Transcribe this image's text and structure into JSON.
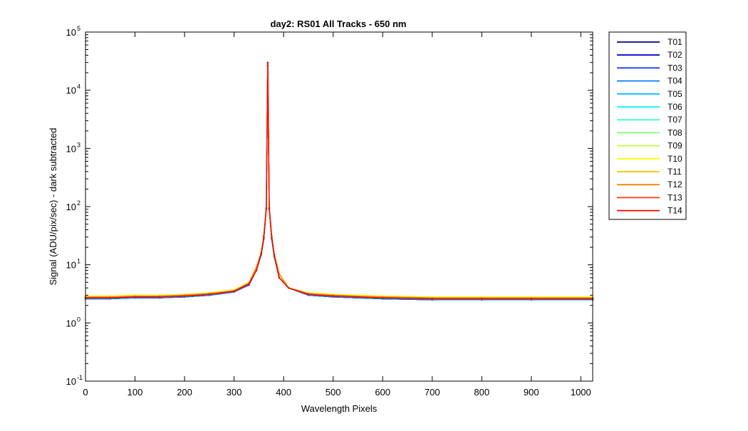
{
  "chart_data": {
    "type": "line",
    "title": "day2: RS01  All Tracks - 650 nm",
    "xlabel": "Wavelength Pixels",
    "ylabel": "Signal (ADU/pix/sec) - dark subtracted",
    "xlim": [
      0,
      1024
    ],
    "ylim": [
      0.1,
      100000
    ],
    "yscale": "log",
    "grid": false,
    "legend_position": "outside-right",
    "x_ticks": [
      "0",
      "100",
      "200",
      "300",
      "400",
      "500",
      "600",
      "700",
      "800",
      "900",
      "1000"
    ],
    "x_tick_values": [
      0,
      100,
      200,
      300,
      400,
      500,
      600,
      700,
      800,
      900,
      1000
    ],
    "y_ticks": [
      {
        "base": "10",
        "exp": "-1"
      },
      {
        "base": "10",
        "exp": "0"
      },
      {
        "base": "10",
        "exp": "1"
      },
      {
        "base": "10",
        "exp": "2"
      },
      {
        "base": "10",
        "exp": "3"
      },
      {
        "base": "10",
        "exp": "4"
      },
      {
        "base": "10",
        "exp": "5"
      }
    ],
    "y_tick_values": [
      0.1,
      1,
      10,
      100,
      1000,
      10000,
      100000
    ],
    "x": [
      0,
      50,
      100,
      150,
      200,
      250,
      300,
      330,
      345,
      355,
      360,
      365,
      368,
      371,
      376,
      381,
      391,
      410,
      450,
      500,
      600,
      700,
      800,
      900,
      1024
    ],
    "series": [
      {
        "name": "T01",
        "color": "#00008f",
        "values": [
          2.6,
          2.6,
          2.7,
          2.7,
          2.8,
          3.0,
          3.4,
          4.5,
          8,
          15,
          28,
          90,
          26000,
          90,
          28,
          14,
          6,
          4,
          3.0,
          2.8,
          2.6,
          2.5,
          2.5,
          2.5,
          2.5
        ]
      },
      {
        "name": "T02",
        "color": "#0000c8",
        "values": [
          2.6,
          2.6,
          2.7,
          2.7,
          2.8,
          3.0,
          3.4,
          4.5,
          8,
          15,
          28,
          90,
          26500,
          90,
          28,
          14,
          6,
          4,
          3.0,
          2.8,
          2.6,
          2.5,
          2.5,
          2.5,
          2.5
        ]
      },
      {
        "name": "T03",
        "color": "#0033ff",
        "values": [
          2.6,
          2.6,
          2.7,
          2.7,
          2.8,
          3.0,
          3.4,
          4.6,
          8,
          15,
          29,
          92,
          27000,
          92,
          29,
          14,
          6,
          4,
          3.0,
          2.8,
          2.6,
          2.5,
          2.5,
          2.5,
          2.5
        ]
      },
      {
        "name": "T04",
        "color": "#0080ff",
        "values": [
          2.6,
          2.6,
          2.7,
          2.7,
          2.8,
          3.0,
          3.4,
          4.6,
          8,
          15,
          29,
          92,
          27000,
          92,
          29,
          14,
          6,
          4,
          3.0,
          2.8,
          2.6,
          2.5,
          2.5,
          2.5,
          2.5
        ]
      },
      {
        "name": "T05",
        "color": "#00bfff",
        "values": [
          2.7,
          2.7,
          2.8,
          2.8,
          2.9,
          3.1,
          3.5,
          4.7,
          8,
          16,
          30,
          94,
          27500,
          94,
          30,
          15,
          6,
          4,
          3.1,
          2.9,
          2.7,
          2.6,
          2.6,
          2.6,
          2.6
        ]
      },
      {
        "name": "T06",
        "color": "#00f0ff",
        "values": [
          2.7,
          2.7,
          2.8,
          2.8,
          2.9,
          3.1,
          3.5,
          4.7,
          8,
          16,
          30,
          94,
          27500,
          94,
          30,
          15,
          6,
          4,
          3.1,
          2.9,
          2.7,
          2.6,
          2.6,
          2.6,
          2.6
        ]
      },
      {
        "name": "T07",
        "color": "#40ffbf",
        "values": [
          2.8,
          2.8,
          2.9,
          2.9,
          3.0,
          3.2,
          3.6,
          4.8,
          9,
          16,
          31,
          96,
          28000,
          96,
          31,
          15,
          7,
          4,
          3.2,
          3.0,
          2.8,
          2.7,
          2.7,
          2.7,
          2.7
        ]
      },
      {
        "name": "T08",
        "color": "#80ff80",
        "values": [
          2.8,
          2.8,
          2.9,
          2.9,
          3.0,
          3.2,
          3.6,
          4.9,
          9,
          17,
          31,
          96,
          28000,
          96,
          31,
          16,
          7,
          4,
          3.2,
          3.0,
          2.8,
          2.7,
          2.7,
          2.7,
          2.7
        ]
      },
      {
        "name": "T09",
        "color": "#bfff40",
        "values": [
          2.9,
          2.9,
          3.0,
          3.0,
          3.1,
          3.3,
          3.7,
          5.0,
          9,
          17,
          32,
          98,
          28500,
          98,
          32,
          16,
          7,
          4,
          3.3,
          3.1,
          2.9,
          2.8,
          2.8,
          2.8,
          2.8
        ]
      },
      {
        "name": "T10",
        "color": "#ffff00",
        "values": [
          2.9,
          2.9,
          3.0,
          3.0,
          3.1,
          3.3,
          3.7,
          5.0,
          9,
          17,
          32,
          98,
          28500,
          98,
          32,
          16,
          7,
          4,
          3.3,
          3.1,
          2.9,
          2.8,
          2.8,
          2.8,
          2.8
        ]
      },
      {
        "name": "T11",
        "color": "#ffbf00",
        "values": [
          2.8,
          2.8,
          2.9,
          2.9,
          3.0,
          3.2,
          3.6,
          4.9,
          9,
          16,
          31,
          96,
          29000,
          96,
          31,
          15,
          7,
          4,
          3.2,
          3.0,
          2.8,
          2.7,
          2.7,
          2.7,
          2.7
        ]
      },
      {
        "name": "T12",
        "color": "#ff8000",
        "values": [
          2.8,
          2.8,
          2.9,
          2.9,
          3.0,
          3.2,
          3.6,
          4.8,
          9,
          16,
          31,
          96,
          29000,
          96,
          31,
          15,
          7,
          4,
          3.2,
          3.0,
          2.8,
          2.7,
          2.7,
          2.7,
          2.7
        ]
      },
      {
        "name": "T13",
        "color": "#ff4000",
        "values": [
          2.7,
          2.7,
          2.8,
          2.8,
          2.9,
          3.1,
          3.5,
          4.7,
          8,
          16,
          30,
          94,
          29500,
          94,
          30,
          15,
          6,
          4,
          3.1,
          2.9,
          2.7,
          2.6,
          2.6,
          2.6,
          2.6
        ]
      },
      {
        "name": "T14",
        "color": "#ff0000",
        "values": [
          2.7,
          2.7,
          2.8,
          2.8,
          2.9,
          3.1,
          3.5,
          4.7,
          8,
          16,
          30,
          94,
          30000,
          94,
          30,
          15,
          6,
          4,
          3.1,
          2.9,
          2.7,
          2.6,
          2.6,
          2.6,
          2.6
        ]
      }
    ]
  }
}
